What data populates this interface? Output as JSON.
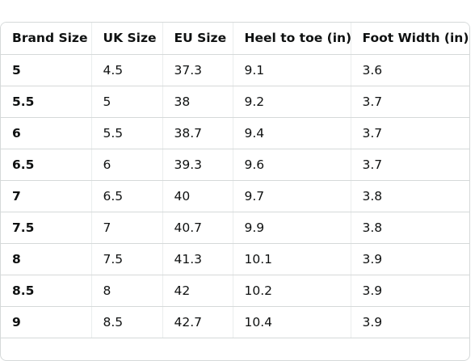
{
  "table": {
    "headers": [
      "Brand Size",
      "UK Size",
      "EU Size",
      "Heel to toe (in)",
      "Foot Width (in)"
    ],
    "rows": [
      [
        "5",
        "4.5",
        "37.3",
        "9.1",
        "3.6"
      ],
      [
        "5.5",
        "5",
        "38",
        "9.2",
        "3.7"
      ],
      [
        "6",
        "5.5",
        "38.7",
        "9.4",
        "3.7"
      ],
      [
        "6.5",
        "6",
        "39.3",
        "9.6",
        "3.7"
      ],
      [
        "7",
        "6.5",
        "40",
        "9.7",
        "3.8"
      ],
      [
        "7.5",
        "7",
        "40.7",
        "9.9",
        "3.8"
      ],
      [
        "8",
        "7.5",
        "41.3",
        "10.1",
        "3.9"
      ],
      [
        "8.5",
        "8",
        "42",
        "10.2",
        "3.9"
      ],
      [
        "9",
        "8.5",
        "42.7",
        "10.4",
        "3.9"
      ]
    ]
  }
}
